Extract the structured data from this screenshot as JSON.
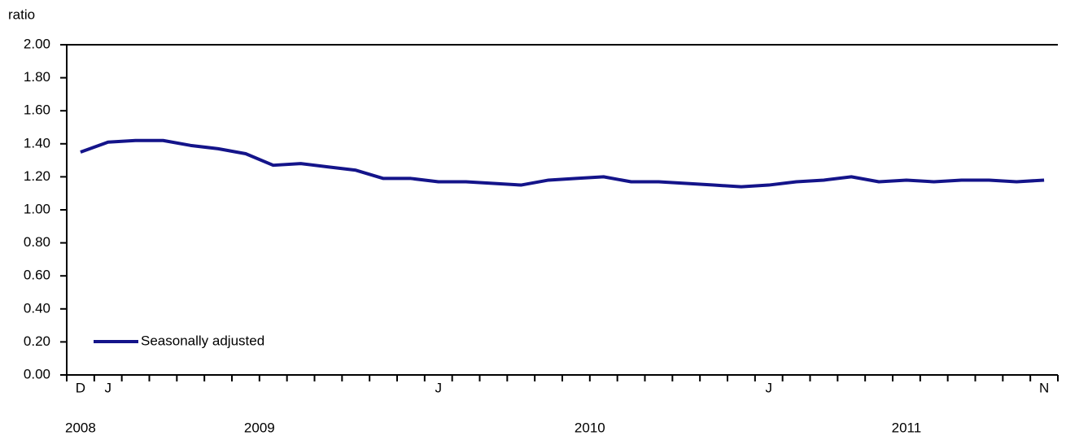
{
  "chart_data": {
    "type": "line",
    "y_axis_label": "ratio",
    "categories": [
      "D",
      "J",
      null,
      null,
      null,
      null,
      null,
      null,
      null,
      null,
      null,
      null,
      null,
      "J",
      null,
      null,
      null,
      null,
      null,
      null,
      null,
      null,
      null,
      null,
      null,
      "J",
      null,
      null,
      null,
      null,
      null,
      null,
      null,
      null,
      null,
      "N"
    ],
    "years": [
      "2008",
      "2009",
      "2010",
      "2011"
    ],
    "series": [
      {
        "name": "Seasonally adjusted",
        "color": "#14148a",
        "values": [
          1.35,
          1.41,
          1.42,
          1.42,
          1.39,
          1.37,
          1.34,
          1.27,
          1.28,
          1.26,
          1.24,
          1.19,
          1.19,
          1.17,
          1.17,
          1.16,
          1.15,
          1.18,
          1.19,
          1.2,
          1.17,
          1.17,
          1.16,
          1.15,
          1.14,
          1.15,
          1.17,
          1.18,
          1.2,
          1.17,
          1.18,
          1.17,
          1.18,
          1.18,
          1.17,
          1.18
        ]
      }
    ],
    "ylim": [
      0,
      2
    ],
    "yticks": [
      {
        "value": 0,
        "label": "0.00"
      },
      {
        "value": 0.2,
        "label": "0.20"
      },
      {
        "value": 0.4,
        "label": "0.40"
      },
      {
        "value": 0.6,
        "label": "0.60"
      },
      {
        "value": 0.8,
        "label": "0.80"
      },
      {
        "value": 1,
        "label": "1.00"
      },
      {
        "value": 1.2,
        "label": "1.20"
      },
      {
        "value": 1.4,
        "label": "1.40"
      },
      {
        "value": 1.6,
        "label": "1.60"
      },
      {
        "value": 1.8,
        "label": "1.80"
      },
      {
        "value": 2,
        "label": "2.00"
      }
    ],
    "grid": false,
    "legend": "lower left"
  }
}
